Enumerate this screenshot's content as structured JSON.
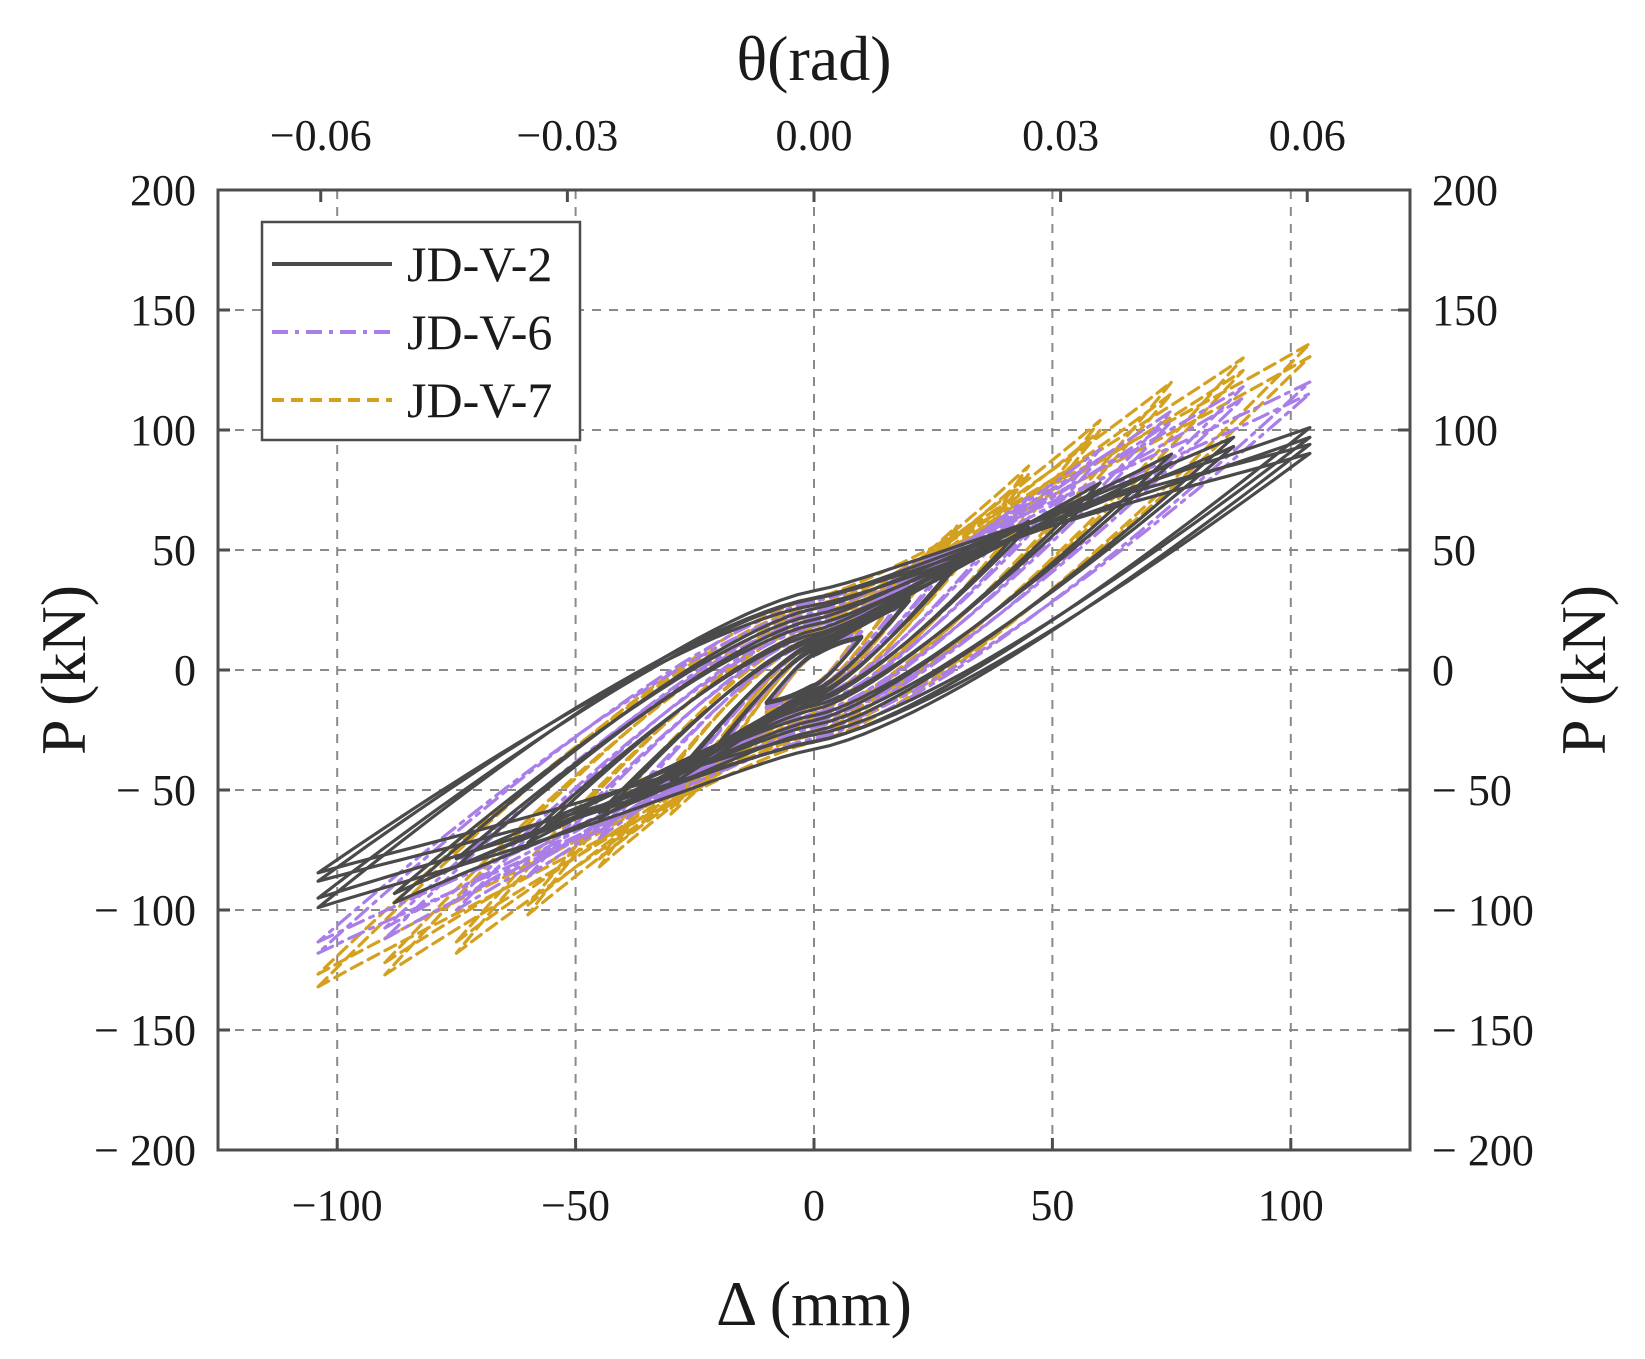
{
  "chart_data": {
    "type": "line",
    "title": "",
    "xlabel": "Δ (mm)",
    "ylabel": "P (kN)",
    "ylabel_right": "P (kN)",
    "x2label": "θ(rad)",
    "xlim": [
      -125,
      125
    ],
    "ylim": [
      -200,
      200
    ],
    "x2lim": [
      -0.0725,
      0.0725
    ],
    "xticks": [
      -100,
      -50,
      0,
      50,
      100
    ],
    "xtick_labels": [
      "−100",
      "−50",
      "0",
      "50",
      "100"
    ],
    "yticks": [
      -200,
      -150,
      -100,
      -50,
      0,
      50,
      100,
      150,
      200
    ],
    "ytick_labels": [
      "− 200",
      "− 150",
      "− 100",
      "− 50",
      "0",
      "50",
      "100",
      "150",
      "200"
    ],
    "ytick_labels_right": [
      "− 200",
      "− 150",
      "− 100",
      "− 50",
      "0",
      "50",
      "100",
      "150",
      "200"
    ],
    "x2ticks": [
      -0.06,
      -0.03,
      0.0,
      0.03,
      0.06
    ],
    "x2tick_labels": [
      "−0.06",
      "−0.03",
      "0.00",
      "0.03",
      "0.06"
    ],
    "grid": true,
    "legend_position": "top-left",
    "series": [
      {
        "name": "JD-V-2",
        "color": "#4a4a4a",
        "dash": "solid",
        "loops": [
          {
            "amp": 10,
            "fp": 14,
            "fn": -14,
            "w": 9
          },
          {
            "amp": 20,
            "fp": 30,
            "fn": -32,
            "w": 12
          },
          {
            "amp": 30,
            "fp": 45,
            "fn": -48,
            "w": 15
          },
          {
            "amp": 45,
            "fp": 62,
            "fn": -62,
            "w": 18
          },
          {
            "amp": 60,
            "fp": 78,
            "fn": -72,
            "w": 22
          },
          {
            "amp": 75,
            "fp": 90,
            "fn": -82,
            "w": 28
          },
          {
            "amp": 88,
            "fp": 97,
            "fn": -97,
            "w": 34
          },
          {
            "amp": 104,
            "fp": 101,
            "fn": -88,
            "w": 40
          },
          {
            "amp": 104,
            "fp": 94,
            "fn": -99,
            "w": 44
          }
        ]
      },
      {
        "name": "JD-V-6",
        "color": "#a97ee8",
        "dash": "dashdot",
        "loops": [
          {
            "amp": 10,
            "fp": 16,
            "fn": -16,
            "w": 9
          },
          {
            "amp": 20,
            "fp": 34,
            "fn": -34,
            "w": 12
          },
          {
            "amp": 30,
            "fp": 50,
            "fn": -52,
            "w": 15
          },
          {
            "amp": 45,
            "fp": 72,
            "fn": -70,
            "w": 18
          },
          {
            "amp": 60,
            "fp": 92,
            "fn": -86,
            "w": 22
          },
          {
            "amp": 75,
            "fp": 108,
            "fn": -100,
            "w": 27
          },
          {
            "amp": 90,
            "fp": 118,
            "fn": -112,
            "w": 32
          },
          {
            "amp": 104,
            "fp": 120,
            "fn": -118,
            "w": 38
          }
        ]
      },
      {
        "name": "JD-V-7",
        "color": "#d4a020",
        "dash": "dashed",
        "loops": [
          {
            "amp": 10,
            "fp": 18,
            "fn": -18,
            "w": 9
          },
          {
            "amp": 20,
            "fp": 40,
            "fn": -40,
            "w": 13
          },
          {
            "amp": 30,
            "fp": 60,
            "fn": -60,
            "w": 16
          },
          {
            "amp": 45,
            "fp": 85,
            "fn": -82,
            "w": 20
          },
          {
            "amp": 60,
            "fp": 104,
            "fn": -102,
            "w": 24
          },
          {
            "amp": 75,
            "fp": 120,
            "fn": -118,
            "w": 29
          },
          {
            "amp": 90,
            "fp": 130,
            "fn": -127,
            "w": 34
          },
          {
            "amp": 104,
            "fp": 136,
            "fn": -132,
            "w": 40
          }
        ]
      }
    ]
  }
}
